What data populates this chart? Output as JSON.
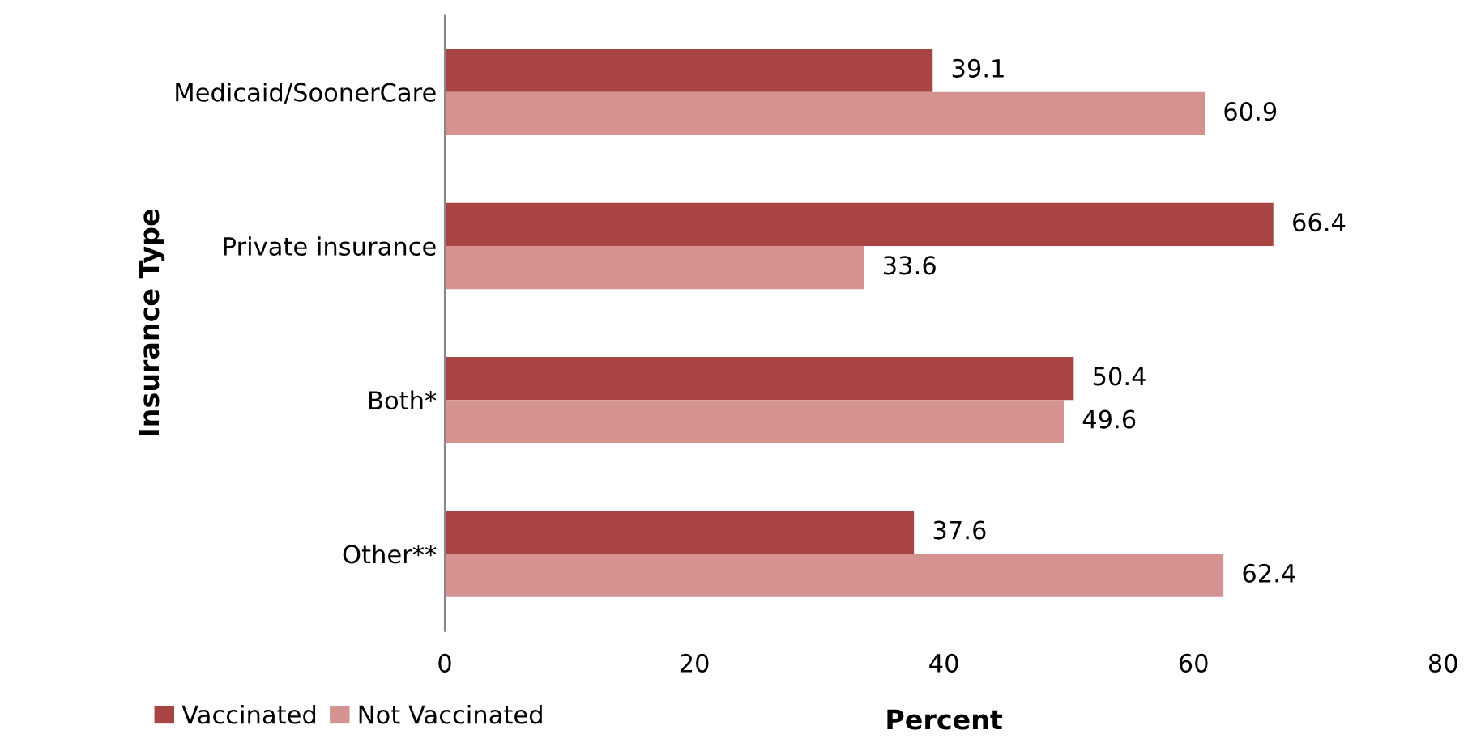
{
  "chart_data": {
    "type": "bar",
    "orientation": "horizontal",
    "xlabel": "Percent",
    "ylabel": "Insurance Type",
    "categories": [
      "Medicaid/SoonerCare",
      "Private insurance",
      "Both*",
      "Other**"
    ],
    "series": [
      {
        "name": "Vaccinated",
        "color": "#a84442",
        "values": [
          39.1,
          66.4,
          50.4,
          37.6
        ]
      },
      {
        "name": "Not Vaccinated",
        "color": "#d49391",
        "values": [
          60.9,
          33.6,
          49.6,
          62.4
        ]
      }
    ],
    "xlim": [
      0,
      80
    ],
    "xticks": [
      0,
      20,
      40,
      60,
      80
    ],
    "grid": false,
    "legend": "bottom left",
    "data_labels": true
  }
}
